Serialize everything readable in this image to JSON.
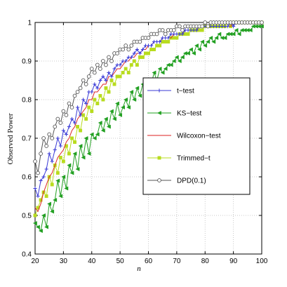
{
  "chart_data": {
    "type": "line",
    "xlabel": "n",
    "ylabel": "Observed Power",
    "xlim": [
      20,
      100
    ],
    "ylim": [
      0.4,
      1.0
    ],
    "xticks": [
      20,
      30,
      40,
      50,
      60,
      70,
      80,
      90,
      100
    ],
    "yticks": [
      0.4,
      0.5,
      0.6,
      0.7,
      0.8,
      0.9,
      1
    ],
    "grid": true,
    "legend_position": "center-right",
    "x": [
      20,
      21,
      22,
      23,
      24,
      25,
      26,
      27,
      28,
      29,
      30,
      31,
      32,
      33,
      34,
      35,
      36,
      37,
      38,
      39,
      40,
      41,
      42,
      43,
      44,
      45,
      46,
      47,
      48,
      49,
      50,
      51,
      52,
      53,
      54,
      55,
      56,
      57,
      58,
      59,
      60,
      61,
      62,
      63,
      64,
      65,
      66,
      67,
      68,
      69,
      70,
      71,
      72,
      73,
      74,
      75,
      76,
      77,
      78,
      79,
      80,
      81,
      82,
      83,
      84,
      85,
      86,
      87,
      88,
      89,
      90,
      91,
      92,
      93,
      94,
      95,
      96,
      97,
      98,
      99,
      100
    ],
    "series": [
      {
        "name": "t−test",
        "color": "#3a3ad6",
        "marker": "plus",
        "values": [
          0.57,
          0.55,
          0.59,
          0.6,
          0.62,
          0.66,
          0.64,
          0.67,
          0.7,
          0.68,
          0.72,
          0.71,
          0.73,
          0.75,
          0.74,
          0.78,
          0.76,
          0.8,
          0.79,
          0.82,
          0.82,
          0.84,
          0.83,
          0.85,
          0.86,
          0.85,
          0.87,
          0.86,
          0.88,
          0.89,
          0.89,
          0.9,
          0.9,
          0.91,
          0.91,
          0.92,
          0.93,
          0.92,
          0.93,
          0.94,
          0.94,
          0.94,
          0.95,
          0.95,
          0.95,
          0.96,
          0.96,
          0.96,
          0.97,
          0.97,
          0.97,
          0.97,
          0.97,
          0.98,
          0.98,
          0.98,
          0.98,
          0.98,
          0.99,
          0.99,
          0.99,
          0.99,
          0.99,
          0.99,
          0.99,
          0.99,
          0.99,
          0.99,
          0.99,
          1.0,
          0.99,
          1.0,
          1.0,
          1.0,
          1.0,
          1.0,
          1.0,
          1.0,
          1.0,
          1.0,
          1.0
        ]
      },
      {
        "name": "KS−test",
        "color": "#22a022",
        "marker": "triangle-left",
        "values": [
          0.48,
          0.47,
          0.46,
          0.5,
          0.47,
          0.53,
          0.51,
          0.54,
          0.59,
          0.55,
          0.6,
          0.57,
          0.63,
          0.61,
          0.66,
          0.62,
          0.68,
          0.65,
          0.7,
          0.66,
          0.71,
          0.7,
          0.71,
          0.74,
          0.72,
          0.75,
          0.73,
          0.77,
          0.75,
          0.79,
          0.76,
          0.78,
          0.8,
          0.78,
          0.82,
          0.8,
          0.83,
          0.81,
          0.84,
          0.83,
          0.85,
          0.84,
          0.87,
          0.85,
          0.88,
          0.87,
          0.88,
          0.89,
          0.89,
          0.9,
          0.91,
          0.9,
          0.91,
          0.92,
          0.92,
          0.93,
          0.92,
          0.94,
          0.93,
          0.95,
          0.94,
          0.95,
          0.96,
          0.95,
          0.96,
          0.97,
          0.96,
          0.96,
          0.97,
          0.97,
          0.97,
          0.98,
          0.97,
          0.98,
          0.98,
          0.98,
          0.98,
          0.99,
          0.99,
          0.99,
          0.99
        ]
      },
      {
        "name": "Wilcoxon−test",
        "color": "#dd2222",
        "marker": "none",
        "values": [
          0.52,
          0.51,
          0.53,
          0.56,
          0.58,
          0.6,
          0.61,
          0.63,
          0.65,
          0.66,
          0.67,
          0.69,
          0.7,
          0.72,
          0.73,
          0.75,
          0.76,
          0.77,
          0.78,
          0.8,
          0.8,
          0.82,
          0.82,
          0.83,
          0.84,
          0.84,
          0.86,
          0.86,
          0.87,
          0.88,
          0.88,
          0.89,
          0.9,
          0.9,
          0.91,
          0.91,
          0.92,
          0.92,
          0.93,
          0.93,
          0.94,
          0.94,
          0.95,
          0.95,
          0.95,
          0.96,
          0.96,
          0.96,
          0.96,
          0.97,
          0.97,
          0.97,
          0.97,
          0.98,
          0.98,
          0.98,
          0.98,
          0.98,
          0.99,
          0.99,
          0.99,
          0.99,
          0.99,
          0.99,
          0.99,
          0.99,
          0.99,
          0.99,
          0.99,
          0.99,
          1.0,
          1.0,
          1.0,
          1.0,
          1.0,
          1.0,
          1.0,
          1.0,
          1.0,
          1.0,
          1.0
        ]
      },
      {
        "name": "Trimmed−t",
        "color": "#b8dc1e",
        "marker": "square",
        "values": [
          0.5,
          0.52,
          0.54,
          0.56,
          0.55,
          0.6,
          0.58,
          0.63,
          0.61,
          0.65,
          0.64,
          0.68,
          0.66,
          0.7,
          0.69,
          0.73,
          0.72,
          0.76,
          0.75,
          0.78,
          0.77,
          0.8,
          0.79,
          0.81,
          0.8,
          0.83,
          0.82,
          0.85,
          0.84,
          0.86,
          0.86,
          0.87,
          0.88,
          0.87,
          0.89,
          0.9,
          0.89,
          0.91,
          0.91,
          0.92,
          0.92,
          0.93,
          0.93,
          0.94,
          0.94,
          0.95,
          0.95,
          0.95,
          0.96,
          0.96,
          0.96,
          0.97,
          0.97,
          0.97,
          0.97,
          0.98,
          0.98,
          0.98,
          0.98,
          0.98,
          0.99,
          0.99,
          0.99,
          0.99,
          0.99,
          0.99,
          0.99,
          0.99,
          1.0,
          0.99,
          1.0,
          1.0,
          1.0,
          1.0,
          1.0,
          1.0,
          1.0,
          1.0,
          1.0,
          1.0,
          1.0
        ]
      },
      {
        "name": "DPD(0.1)",
        "color": "#555555",
        "marker": "circle",
        "values": [
          0.64,
          0.61,
          0.66,
          0.7,
          0.68,
          0.71,
          0.7,
          0.73,
          0.75,
          0.74,
          0.77,
          0.76,
          0.79,
          0.78,
          0.81,
          0.82,
          0.83,
          0.85,
          0.84,
          0.86,
          0.88,
          0.87,
          0.89,
          0.88,
          0.9,
          0.89,
          0.91,
          0.9,
          0.92,
          0.92,
          0.93,
          0.93,
          0.94,
          0.93,
          0.94,
          0.95,
          0.95,
          0.95,
          0.96,
          0.96,
          0.96,
          0.97,
          0.97,
          0.97,
          0.98,
          0.98,
          0.97,
          0.98,
          0.98,
          0.98,
          0.99,
          0.99,
          0.98,
          0.99,
          0.99,
          0.99,
          0.99,
          0.99,
          0.99,
          0.99,
          1.0,
          0.99,
          1.0,
          1.0,
          1.0,
          1.0,
          1.0,
          1.0,
          1.0,
          1.0,
          1.0,
          1.0,
          1.0,
          1.0,
          1.0,
          1.0,
          1.0,
          1.0,
          1.0,
          1.0,
          1.0
        ]
      }
    ]
  }
}
